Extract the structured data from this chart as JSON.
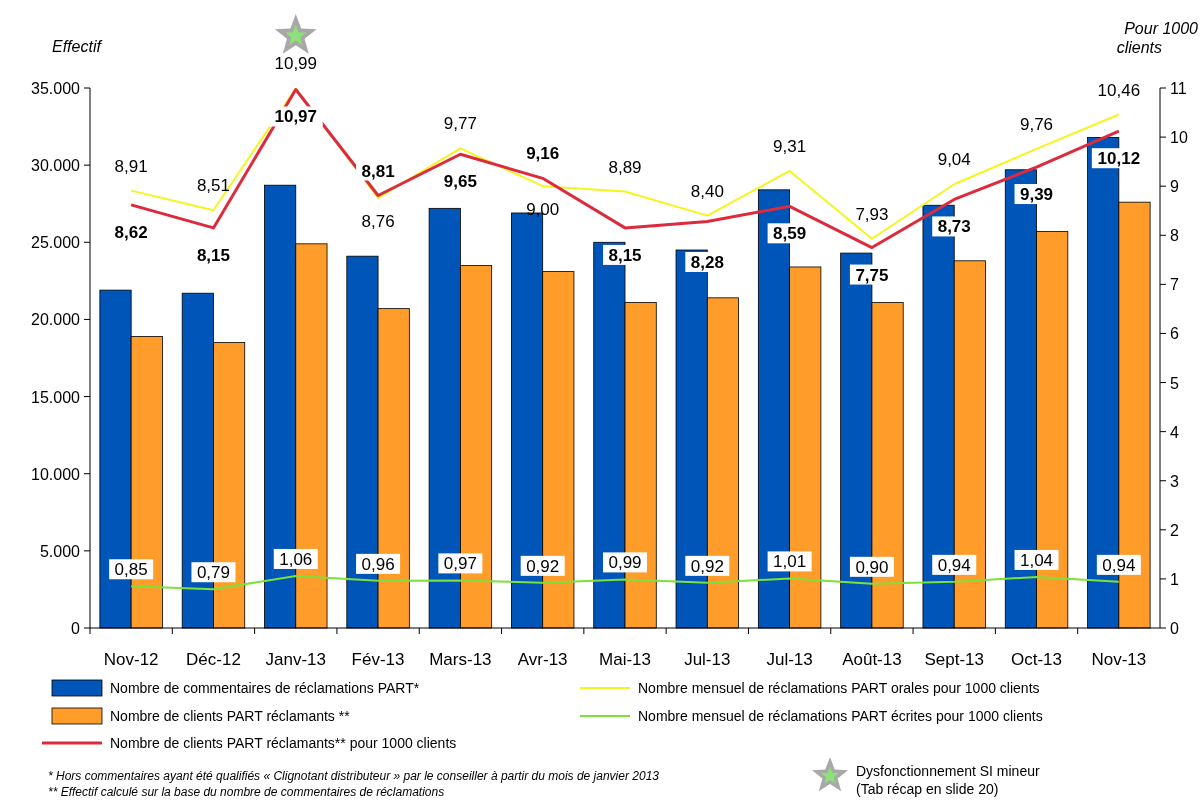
{
  "chart_data": {
    "type": "bar",
    "ylabel": "Effectif",
    "y2label": "Pour 1000 clients",
    "categories": [
      "Nov-12",
      "Déc-12",
      "Janv-13",
      "Fév-13",
      "Mars-13",
      "Avr-13",
      "Mai-13",
      "Jul-13",
      "Jul-13",
      "Août-13",
      "Sept-13",
      "Oct-13",
      "Nov-13"
    ],
    "series": [
      {
        "name": "Nombre de commentaires de réclamations PART*",
        "color": "#0055b8",
        "values": [
          21900,
          21700,
          28700,
          24100,
          27200,
          26900,
          25000,
          24500,
          28400,
          24300,
          27400,
          29700,
          31800
        ]
      },
      {
        "name": "Nombre de clients PART réclamants **",
        "color": "#ff9c2a",
        "values": [
          18900,
          18500,
          24900,
          20700,
          23500,
          23100,
          21100,
          21400,
          23400,
          21100,
          23800,
          25700,
          27600
        ]
      },
      {
        "name": "Nombre mensuel de réclamations PART orales pour 1000 clients",
        "type": "line",
        "axis": "y2",
        "color": "#f5f51e",
        "values": [
          8.91,
          8.51,
          10.99,
          8.76,
          9.77,
          9.0,
          8.89,
          8.4,
          9.31,
          7.93,
          9.04,
          9.76,
          10.46
        ],
        "value_labels": [
          "8,91",
          "8,51",
          "10,99",
          "8,76",
          "9,77",
          "9,00",
          "8,89",
          "8,40",
          "9,31",
          "7,93",
          "9,04",
          "9,76",
          "10,46"
        ]
      },
      {
        "name": "Nombre mensuel de réclamations PART écrites pour 1000 clients",
        "type": "line",
        "axis": "y2",
        "color": "#7ee03a",
        "values": [
          0.85,
          0.79,
          1.06,
          0.96,
          0.97,
          0.92,
          0.99,
          0.92,
          1.01,
          0.9,
          0.94,
          1.04,
          0.94
        ],
        "value_labels": [
          "0,85",
          "0,79",
          "1,06",
          "0,96",
          "0,97",
          "0,92",
          "0,99",
          "0,92",
          "1,01",
          "0,90",
          "0,94",
          "1,04",
          "0,94"
        ]
      },
      {
        "name": "Nombre de clients PART réclamants** pour 1000 clients",
        "type": "line",
        "axis": "y2",
        "color": "#dc2b3c",
        "values": [
          8.62,
          8.15,
          10.97,
          8.81,
          9.65,
          9.16,
          8.15,
          8.28,
          8.59,
          7.75,
          8.73,
          9.39,
          10.12
        ],
        "value_labels": [
          "8,62",
          "8,15",
          "10,97",
          "8,81",
          "9,65",
          "9,16",
          "8,15",
          "8,28",
          "8,59",
          "7,75",
          "8,73",
          "9,39",
          "10,12"
        ]
      }
    ],
    "ylim": [
      0,
      35000
    ],
    "yticks": [
      {
        "value": 0,
        "label": "0"
      },
      {
        "value": 5000,
        "label": "5.000"
      },
      {
        "value": 10000,
        "label": "10.000"
      },
      {
        "value": 15000,
        "label": "15.000"
      },
      {
        "value": 20000,
        "label": "20.000"
      },
      {
        "value": 25000,
        "label": "25.000"
      },
      {
        "value": 30000,
        "label": "30.000"
      },
      {
        "value": 35000,
        "label": "35.000"
      }
    ],
    "y2lim": [
      0,
      11
    ],
    "y2ticks": [
      0,
      1,
      2,
      3,
      4,
      5,
      6,
      7,
      8,
      9,
      10,
      11
    ],
    "grid": false,
    "legend": "bottom",
    "marker": "none",
    "annotations": [
      "Dysfonctionnement SI mineur\n(Tab  récap en slide 20)",
      "* Hors commentaires  ayant été qualifiés « Clignotant distributeur » par le conseiller à partir du mois de janvier 2013",
      "** Effectif calculé sur la base du nombre de commentaires de réclamations"
    ]
  }
}
